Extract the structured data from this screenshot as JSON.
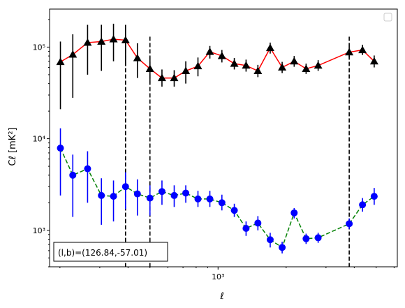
{
  "chart_data": {
    "type": "line",
    "title": "",
    "xlabel": "ℓ",
    "ylabel": "Cℓ  [mK²]",
    "x_scale": "log",
    "y_scale": "log",
    "xlim": [
      180,
      6200
    ],
    "ylim": [
      400,
      260000
    ],
    "x_tick_labels": [
      {
        "value": 1000,
        "label": "10³"
      }
    ],
    "y_tick_labels": [
      {
        "value": 1000,
        "label": "10³"
      },
      {
        "value": 10000,
        "label": "10⁴"
      },
      {
        "value": 100000,
        "label": "10⁵"
      }
    ],
    "grid": false,
    "legend": {
      "placement": "top-right",
      "entries": []
    },
    "annotation": "(l,b)=(126.84,-57.01)",
    "vlines": [
      {
        "x": 390,
        "style": "dashed",
        "color": "#000000"
      },
      {
        "x": 500,
        "style": "dashed",
        "color": "#000000"
      },
      {
        "x": 3800,
        "style": "dashed",
        "color": "#000000"
      }
    ],
    "series": [
      {
        "marker": "triangle",
        "line_color": "#ff0000",
        "marker_color": "#000000",
        "errorbar_color": "#000000",
        "line_style": "solid",
        "points": [
          {
            "x": 201,
            "y": 69000,
            "lo": 21000,
            "hi": 115000
          },
          {
            "x": 228,
            "y": 83000,
            "lo": 28000,
            "hi": 138000
          },
          {
            "x": 265,
            "y": 112000,
            "lo": 50000,
            "hi": 175000
          },
          {
            "x": 305,
            "y": 115000,
            "lo": 55000,
            "hi": 175000
          },
          {
            "x": 345,
            "y": 122000,
            "lo": 70000,
            "hi": 180000
          },
          {
            "x": 390,
            "y": 119000,
            "lo": 62000,
            "hi": 175000
          },
          {
            "x": 440,
            "y": 76000,
            "lo": 46000,
            "hi": 110000
          },
          {
            "x": 500,
            "y": 58000,
            "lo": 40000,
            "hi": 78000
          },
          {
            "x": 565,
            "y": 46000,
            "lo": 37000,
            "hi": 57000
          },
          {
            "x": 640,
            "y": 46000,
            "lo": 37000,
            "hi": 56000
          },
          {
            "x": 720,
            "y": 55000,
            "lo": 40000,
            "hi": 70000
          },
          {
            "x": 815,
            "y": 62000,
            "lo": 48000,
            "hi": 77000
          },
          {
            "x": 920,
            "y": 89000,
            "lo": 75000,
            "hi": 103000
          },
          {
            "x": 1040,
            "y": 80000,
            "lo": 68000,
            "hi": 93000
          },
          {
            "x": 1180,
            "y": 66000,
            "lo": 57000,
            "hi": 76000
          },
          {
            "x": 1330,
            "y": 63000,
            "lo": 54000,
            "hi": 73000
          },
          {
            "x": 1500,
            "y": 55000,
            "lo": 47000,
            "hi": 64000
          },
          {
            "x": 1700,
            "y": 98000,
            "lo": 85000,
            "hi": 112000
          },
          {
            "x": 1920,
            "y": 60000,
            "lo": 52000,
            "hi": 69000
          },
          {
            "x": 2170,
            "y": 70000,
            "lo": 61000,
            "hi": 80000
          },
          {
            "x": 2450,
            "y": 58000,
            "lo": 51000,
            "hi": 66000
          },
          {
            "x": 2770,
            "y": 63000,
            "lo": 55000,
            "hi": 72000
          },
          {
            "x": 3800,
            "y": 88000,
            "lo": 77000,
            "hi": 100000
          },
          {
            "x": 4350,
            "y": 93000,
            "lo": 82000,
            "hi": 106000
          },
          {
            "x": 4900,
            "y": 70000,
            "lo": 60000,
            "hi": 81000
          }
        ]
      },
      {
        "marker": "circle",
        "line_color": "#008000",
        "marker_color": "#0000ff",
        "errorbar_color": "#0000ff",
        "line_style": "dashed",
        "points": [
          {
            "x": 201,
            "y": 7900,
            "lo": 2400,
            "hi": 13000
          },
          {
            "x": 228,
            "y": 4000,
            "lo": 1400,
            "hi": 6700
          },
          {
            "x": 265,
            "y": 4700,
            "lo": 2000,
            "hi": 7300
          },
          {
            "x": 305,
            "y": 2400,
            "lo": 1150,
            "hi": 3700
          },
          {
            "x": 345,
            "y": 2350,
            "lo": 1250,
            "hi": 3500
          },
          {
            "x": 390,
            "y": 3000,
            "lo": 1700,
            "hi": 4300
          },
          {
            "x": 440,
            "y": 2500,
            "lo": 1450,
            "hi": 3600
          },
          {
            "x": 500,
            "y": 2250,
            "lo": 1450,
            "hi": 3100
          },
          {
            "x": 565,
            "y": 2650,
            "lo": 1900,
            "hi": 3500
          },
          {
            "x": 640,
            "y": 2400,
            "lo": 1800,
            "hi": 3100
          },
          {
            "x": 720,
            "y": 2550,
            "lo": 2000,
            "hi": 3100
          },
          {
            "x": 815,
            "y": 2200,
            "lo": 1800,
            "hi": 2700
          },
          {
            "x": 920,
            "y": 2200,
            "lo": 1800,
            "hi": 2700
          },
          {
            "x": 1040,
            "y": 2000,
            "lo": 1650,
            "hi": 2450
          },
          {
            "x": 1180,
            "y": 1650,
            "lo": 1400,
            "hi": 1950
          },
          {
            "x": 1330,
            "y": 1050,
            "lo": 870,
            "hi": 1250
          },
          {
            "x": 1500,
            "y": 1200,
            "lo": 1000,
            "hi": 1430
          },
          {
            "x": 1700,
            "y": 790,
            "lo": 650,
            "hi": 940
          },
          {
            "x": 1920,
            "y": 650,
            "lo": 560,
            "hi": 750
          },
          {
            "x": 2170,
            "y": 1550,
            "lo": 1350,
            "hi": 1750
          },
          {
            "x": 2450,
            "y": 810,
            "lo": 710,
            "hi": 920
          },
          {
            "x": 2770,
            "y": 830,
            "lo": 730,
            "hi": 940
          },
          {
            "x": 3800,
            "y": 1180,
            "lo": 1030,
            "hi": 1350
          },
          {
            "x": 4350,
            "y": 1900,
            "lo": 1600,
            "hi": 2250
          },
          {
            "x": 4900,
            "y": 2350,
            "lo": 1900,
            "hi": 2900
          }
        ]
      }
    ]
  }
}
